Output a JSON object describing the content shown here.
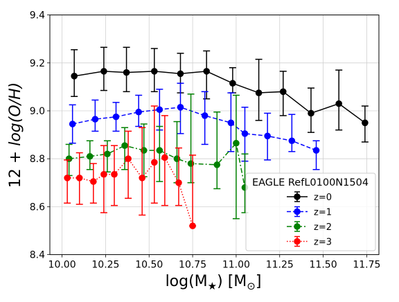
{
  "chart_data": {
    "type": "scatter",
    "xlabel_base": "log(M",
    "xlabel_sub": "★",
    "xlabel_unit_pre": ") [M",
    "xlabel_unit_sub": "⊙",
    "xlabel_unit_post": "]",
    "ylabel_pre": "12 + ",
    "ylabel_italic": "log(O/H)",
    "xlim": [
      9.93,
      11.82
    ],
    "ylim": [
      8.4,
      9.4
    ],
    "xticks": [
      10.0,
      10.25,
      10.5,
      10.75,
      11.0,
      11.25,
      11.5,
      11.75
    ],
    "xtick_labels": [
      "10.00",
      "10.25",
      "10.50",
      "10.75",
      "11.00",
      "11.25",
      "11.50",
      "11.75"
    ],
    "yticks": [
      8.4,
      8.6,
      8.8,
      9.0,
      9.2,
      9.4
    ],
    "ytick_labels": [
      "8.4",
      "8.6",
      "8.8",
      "9.0",
      "9.2",
      "9.4"
    ],
    "grid": true,
    "legend_title": "EAGLE RefL0100N1504",
    "legend_position": "lower-right",
    "series": [
      {
        "name": "z=0",
        "color": "#000000",
        "linestyle": "solid",
        "x": [
          10.07,
          10.24,
          10.37,
          10.53,
          10.68,
          10.83,
          10.98,
          11.13,
          11.27,
          11.43,
          11.59,
          11.74
        ],
        "y": [
          9.145,
          9.165,
          9.16,
          9.165,
          9.155,
          9.165,
          9.115,
          9.075,
          9.08,
          8.99,
          9.03,
          8.95
        ],
        "yerr_low": [
          9.06,
          9.085,
          9.08,
          9.08,
          9.075,
          9.05,
          9.075,
          8.96,
          8.98,
          8.91,
          8.92,
          8.87
        ],
        "yerr_high": [
          9.255,
          9.265,
          9.265,
          9.26,
          9.24,
          9.25,
          9.18,
          9.215,
          9.165,
          9.095,
          9.17,
          9.02
        ]
      },
      {
        "name": "z=1",
        "color": "#0000ff",
        "linestyle": "dashed",
        "x": [
          10.06,
          10.19,
          10.31,
          10.44,
          10.56,
          10.68,
          10.82,
          10.97,
          11.05,
          11.18,
          11.32,
          11.46
        ],
        "y": [
          8.945,
          8.965,
          8.975,
          8.995,
          9.005,
          9.015,
          8.98,
          8.95,
          8.905,
          8.895,
          8.875,
          8.835
        ],
        "yerr_low": [
          8.865,
          8.915,
          8.915,
          8.935,
          8.92,
          8.905,
          8.86,
          8.83,
          8.79,
          8.795,
          8.83,
          8.755
        ],
        "yerr_high": [
          9.025,
          9.045,
          9.035,
          9.065,
          9.09,
          9.115,
          9.08,
          9.075,
          9.015,
          8.99,
          8.985,
          8.875
        ]
      },
      {
        "name": "z=2",
        "color": "#008000",
        "linestyle": "dashdot",
        "x": [
          10.04,
          10.16,
          10.26,
          10.36,
          10.47,
          10.56,
          10.66,
          10.74,
          10.89,
          11.0,
          11.05
        ],
        "y": [
          8.8,
          8.81,
          8.82,
          8.855,
          8.835,
          8.835,
          8.8,
          8.78,
          8.775,
          8.865,
          8.68
        ],
        "yerr_low": [
          8.73,
          8.755,
          8.745,
          8.755,
          8.725,
          8.705,
          8.7,
          8.7,
          8.675,
          8.55,
          8.575
        ],
        "yerr_high": [
          8.86,
          8.875,
          8.875,
          8.93,
          8.945,
          8.935,
          8.955,
          9.07,
          8.995,
          9.065,
          8.82
        ]
      },
      {
        "name": "z=3",
        "color": "#ff0000",
        "linestyle": "dotted",
        "x": [
          10.03,
          10.1,
          10.18,
          10.24,
          10.3,
          10.38,
          10.46,
          10.53,
          10.59,
          10.67,
          10.75
        ],
        "y": [
          8.72,
          8.72,
          8.705,
          8.735,
          8.735,
          8.8,
          8.72,
          8.785,
          8.805,
          8.7,
          8.52
        ],
        "yerr_low": [
          8.615,
          8.61,
          8.615,
          8.575,
          8.605,
          8.635,
          8.565,
          8.615,
          8.605,
          8.605,
          8.52
        ],
        "yerr_high": [
          8.795,
          8.825,
          8.78,
          8.855,
          8.855,
          8.915,
          8.93,
          9.02,
          8.98,
          8.845,
          8.815
        ]
      }
    ]
  }
}
